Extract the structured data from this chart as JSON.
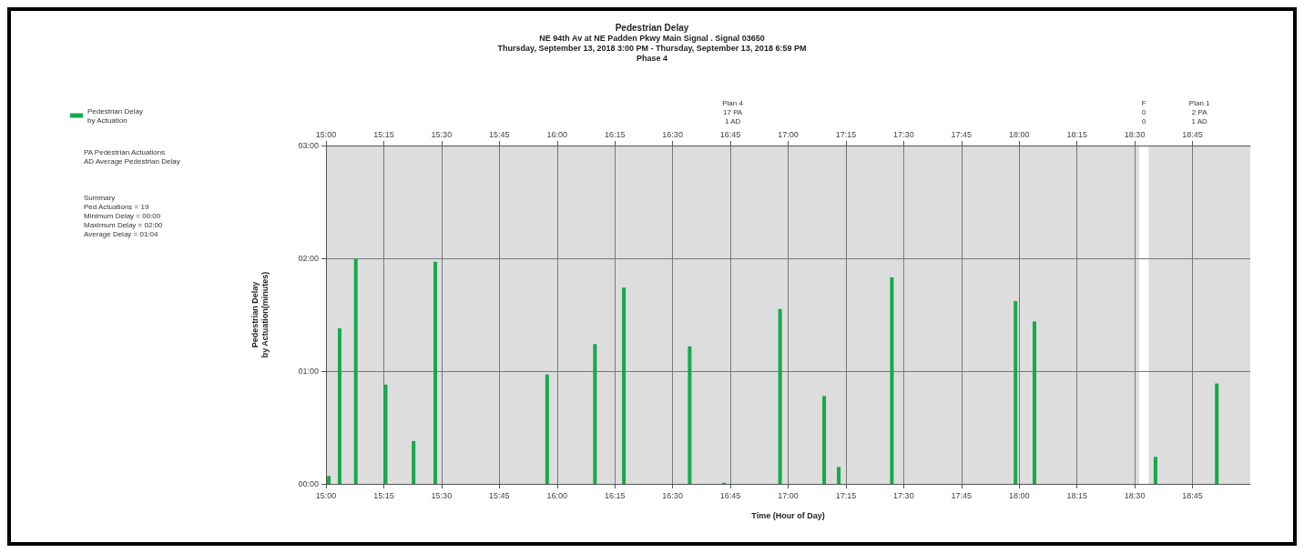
{
  "chart_data": {
    "type": "bar",
    "title": "Pedestrian Delay",
    "subtitle": "NE 94th Av at NE Padden Pkwy Main Signal . Signal 03650\nThursday, September 13, 2018 3:00 PM - Thursday, September 13, 2018 6:59 PM\nPhase 4",
    "xlabel": "Time (Hour of Day)",
    "ylabel": "Pedestrian Delay\nby Actuation(minutes)",
    "series": [
      {
        "name": "Pedestrian Delay\nby Actuation",
        "color": "#17a84e",
        "x": [
          15.012,
          15.059,
          15.129,
          15.258,
          15.379,
          15.473,
          15.957,
          16.164,
          16.289,
          16.574,
          16.723,
          16.965,
          17.156,
          17.219,
          17.449,
          17.984,
          18.066,
          18.59,
          18.855
        ],
        "values": [
          0.07,
          1.38,
          2.0,
          0.88,
          0.38,
          1.97,
          0.97,
          1.24,
          1.74,
          1.22,
          0.01,
          1.55,
          0.78,
          0.15,
          1.83,
          1.62,
          1.44,
          0.24,
          0.89
        ]
      }
    ],
    "xlim": [
      15,
      19
    ],
    "xticks": [
      {
        "value": 15,
        "label": "15:00"
      },
      {
        "value": 15.25,
        "label": "15:15"
      },
      {
        "value": 15.5,
        "label": "15:30"
      },
      {
        "value": 15.75,
        "label": "15:45"
      },
      {
        "value": 16,
        "label": "16:00"
      },
      {
        "value": 16.25,
        "label": "16:15"
      },
      {
        "value": 16.5,
        "label": "16:30"
      },
      {
        "value": 16.75,
        "label": "16:45"
      },
      {
        "value": 17,
        "label": "17:00"
      },
      {
        "value": 17.25,
        "label": "17:15"
      },
      {
        "value": 17.5,
        "label": "17:30"
      },
      {
        "value": 17.75,
        "label": "17:45"
      },
      {
        "value": 18,
        "label": "18:00"
      },
      {
        "value": 18.25,
        "label": "18:15"
      },
      {
        "value": 18.5,
        "label": "18:30"
      },
      {
        "value": 18.75,
        "label": "18:45"
      }
    ],
    "x2lim": [
      15,
      19
    ],
    "x2ticks": [
      {
        "value": 15,
        "label": "15:00"
      },
      {
        "value": 15.25,
        "label": "15:15"
      },
      {
        "value": 15.5,
        "label": "15:30"
      },
      {
        "value": 15.75,
        "label": "15:45"
      },
      {
        "value": 16,
        "label": "16:00"
      },
      {
        "value": 16.25,
        "label": "16:15"
      },
      {
        "value": 16.5,
        "label": "16:30"
      },
      {
        "value": 16.75,
        "label": "16:45"
      },
      {
        "value": 17,
        "label": "17:00"
      },
      {
        "value": 17.25,
        "label": "17:15"
      },
      {
        "value": 17.5,
        "label": "17:30"
      },
      {
        "value": 17.75,
        "label": "17:45"
      },
      {
        "value": 18,
        "label": "18:00"
      },
      {
        "value": 18.25,
        "label": "18:15"
      },
      {
        "value": 18.5,
        "label": "18:30"
      },
      {
        "value": 18.75,
        "label": "18:45"
      }
    ],
    "ylim": [
      0,
      3
    ],
    "yticks": [
      {
        "value": 0,
        "label": "00:00"
      },
      {
        "value": 1,
        "label": "01:00"
      },
      {
        "value": 2,
        "label": "02:00"
      },
      {
        "value": 3,
        "label": "03:00"
      }
    ],
    "bands": [
      {
        "axis": "x",
        "from": 15,
        "to": 18.52,
        "label": "Plan 4\n17 PA\n1 AD",
        "color": "#dddddd"
      },
      {
        "axis": "x",
        "from": 18.52,
        "to": 18.56,
        "label": "F\n0\n0",
        "color": "#ffffff"
      },
      {
        "axis": "x",
        "from": 18.56,
        "to": 19,
        "label": "Plan 1\n2 PA\n1 AD",
        "color": "#dddddd"
      }
    ],
    "annotations": [
      "PA Pedestrian Actuations\nAD Average Pedestrian Delay",
      "Summary\nPed Actuations = 19\nMinimum Delay = 00:00\nMaximum Delay = 02:00\nAverage Delay = 01:04"
    ],
    "grid": true,
    "legend": "top left"
  }
}
